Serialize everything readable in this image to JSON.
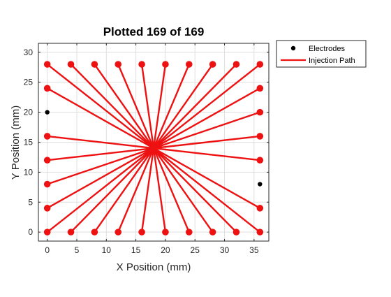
{
  "chart_data": {
    "type": "scatter",
    "title": "Plotted 169 of 169",
    "xlabel": "X Position (mm)",
    "ylabel": "Y Position (mm)",
    "xlim": [
      -1.5,
      37.5
    ],
    "ylim": [
      -1.5,
      31.5
    ],
    "xticks": [
      0,
      5,
      10,
      15,
      20,
      25,
      30,
      35
    ],
    "yticks": [
      0,
      5,
      10,
      15,
      20,
      25,
      30
    ],
    "grid": true,
    "legend_position": "outside-top-right",
    "center": [
      18,
      14
    ],
    "series": [
      {
        "name": "Electrodes",
        "color": "#000000",
        "marker": "dot",
        "points": [
          [
            0,
            20
          ],
          [
            36,
            8
          ]
        ]
      },
      {
        "name": "Injection Path",
        "color": "#ee1111",
        "marker": "line-with-dots",
        "endpoints": [
          [
            0,
            28
          ],
          [
            4,
            28
          ],
          [
            8,
            28
          ],
          [
            12,
            28
          ],
          [
            16,
            28
          ],
          [
            20,
            28
          ],
          [
            24,
            28
          ],
          [
            28,
            28
          ],
          [
            32,
            28
          ],
          [
            36,
            28
          ],
          [
            0,
            24
          ],
          [
            0,
            16
          ],
          [
            0,
            12
          ],
          [
            0,
            8
          ],
          [
            0,
            4
          ],
          [
            0,
            0
          ],
          [
            4,
            0
          ],
          [
            8,
            0
          ],
          [
            12,
            0
          ],
          [
            16,
            0
          ],
          [
            20,
            0
          ],
          [
            24,
            0
          ],
          [
            28,
            0
          ],
          [
            32,
            0
          ],
          [
            36,
            0
          ],
          [
            36,
            24
          ],
          [
            36,
            20
          ],
          [
            36,
            16
          ],
          [
            36,
            12
          ],
          [
            36,
            4
          ]
        ]
      }
    ]
  }
}
